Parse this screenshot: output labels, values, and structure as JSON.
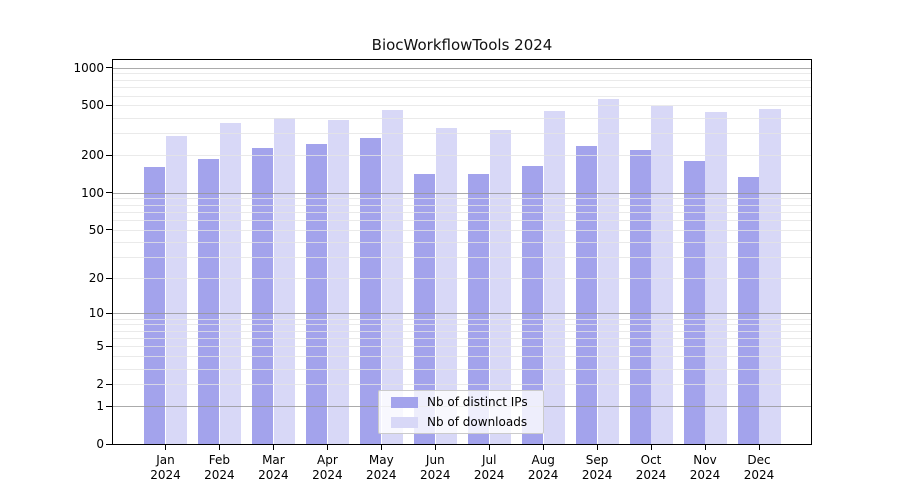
{
  "figure": {
    "title": "BiocWorkflowTools 2024"
  },
  "legend": {
    "entries": [
      {
        "label": "Nb of distinct IPs",
        "color": "#a3a3ec"
      },
      {
        "label": "Nb of downloads",
        "color": "#d8d8f7"
      }
    ]
  },
  "x_axis": {
    "months": [
      "Jan",
      "Feb",
      "Mar",
      "Apr",
      "May",
      "Jun",
      "Jul",
      "Aug",
      "Sep",
      "Oct",
      "Nov",
      "Dec"
    ],
    "year": "2024"
  },
  "y_axis": {
    "ticks": [
      {
        "label": "1000",
        "value": 1000
      },
      {
        "label": "500",
        "value": 500
      },
      {
        "label": "200",
        "value": 200
      },
      {
        "label": "100",
        "value": 100
      },
      {
        "label": "50",
        "value": 50
      },
      {
        "label": "20",
        "value": 20
      },
      {
        "label": "10",
        "value": 10
      },
      {
        "label": "5",
        "value": 5
      },
      {
        "label": "2",
        "value": 2
      },
      {
        "label": "1",
        "value": 1
      },
      {
        "label": "0",
        "value": 0
      }
    ],
    "minor_gridlines": [
      2,
      3,
      4,
      5,
      6,
      7,
      8,
      9,
      20,
      30,
      40,
      50,
      60,
      70,
      80,
      90,
      200,
      300,
      400,
      500,
      600,
      700,
      800,
      900
    ],
    "major_gridlines": [
      1,
      10,
      100,
      1000
    ]
  },
  "chart_data": {
    "type": "bar",
    "title": "BiocWorkflowTools 2024",
    "categories": [
      "Jan 2024",
      "Feb 2024",
      "Mar 2024",
      "Apr 2024",
      "May 2024",
      "Jun 2024",
      "Jul 2024",
      "Aug 2024",
      "Sep 2024",
      "Oct 2024",
      "Nov 2024",
      "Dec 2024"
    ],
    "series": [
      {
        "name": "Nb of distinct IPs",
        "color": "#a3a3ec",
        "values": [
          160,
          186,
          230,
          245,
          274,
          140,
          140,
          165,
          235,
          222,
          181,
          134
        ]
      },
      {
        "name": "Nb of downloads",
        "color": "#d8d8f7",
        "values": [
          286,
          363,
          395,
          383,
          460,
          329,
          319,
          454,
          560,
          492,
          445,
          470
        ]
      }
    ],
    "xlabel": "",
    "ylabel": "",
    "yscale": "log1p",
    "ylim": [
      0,
      1000
    ],
    "yticks": [
      0,
      1,
      2,
      5,
      10,
      20,
      50,
      100,
      200,
      500,
      1000
    ],
    "grid": true,
    "legend_position": "lower center"
  }
}
